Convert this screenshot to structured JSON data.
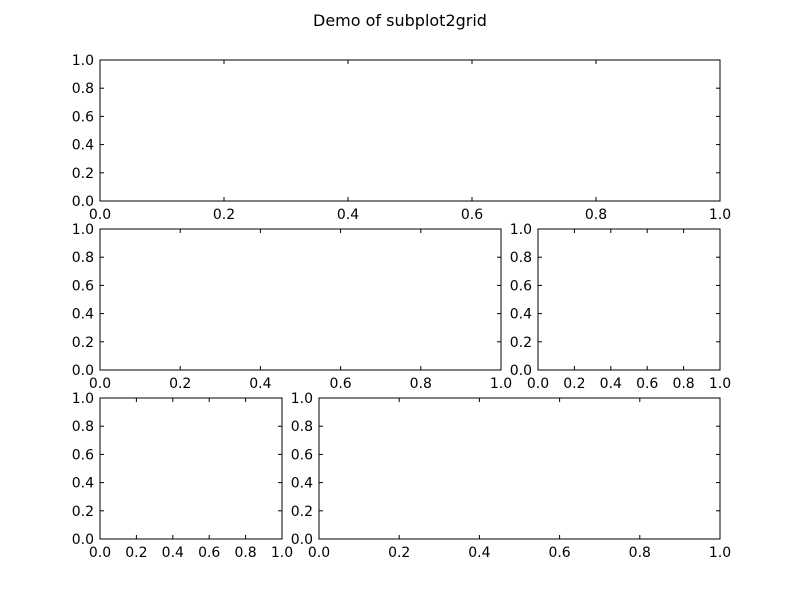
{
  "figure": {
    "suptitle": "Demo of subplot2grid"
  },
  "chart_data": [
    {
      "type": "line",
      "name": "ax1",
      "series": [],
      "xlim": [
        0.0,
        1.0
      ],
      "ylim": [
        0.0,
        1.0
      ],
      "xticks": [
        "0.0",
        "0.2",
        "0.4",
        "0.6",
        "0.8",
        "1.0"
      ],
      "yticks": [
        "0.0",
        "0.2",
        "0.4",
        "0.6",
        "0.8",
        "1.0"
      ],
      "grid": false
    },
    {
      "type": "line",
      "name": "ax2",
      "series": [],
      "xlim": [
        0.0,
        1.0
      ],
      "ylim": [
        0.0,
        1.0
      ],
      "xticks": [
        "0.0",
        "0.2",
        "0.4",
        "0.6",
        "0.8",
        "1.0"
      ],
      "yticks": [
        "0.0",
        "0.2",
        "0.4",
        "0.6",
        "0.8",
        "1.0"
      ],
      "grid": false
    },
    {
      "type": "line",
      "name": "ax3",
      "series": [],
      "xlim": [
        0.0,
        1.0
      ],
      "ylim": [
        0.0,
        1.0
      ],
      "xticks": [
        "0.0",
        "0.2",
        "0.4",
        "0.6",
        "0.8",
        "1.0"
      ],
      "yticks": [
        "0.0",
        "0.2",
        "0.4",
        "0.6",
        "0.8",
        "1.0"
      ],
      "grid": false
    },
    {
      "type": "line",
      "name": "ax4",
      "series": [],
      "xlim": [
        0.0,
        1.0
      ],
      "ylim": [
        0.0,
        1.0
      ],
      "xticks": [
        "0.0",
        "0.2",
        "0.4",
        "0.6",
        "0.8",
        "1.0"
      ],
      "yticks": [
        "0.0",
        "0.2",
        "0.4",
        "0.6",
        "0.8",
        "1.0"
      ],
      "grid": false
    },
    {
      "type": "line",
      "name": "ax5",
      "series": [],
      "xlim": [
        0.0,
        1.0
      ],
      "ylim": [
        0.0,
        1.0
      ],
      "xticks": [
        "0.0",
        "0.2",
        "0.4",
        "0.6",
        "0.8",
        "1.0"
      ],
      "yticks": [
        "0.0",
        "0.2",
        "0.4",
        "0.6",
        "0.8",
        "1.0"
      ],
      "grid": false
    }
  ]
}
